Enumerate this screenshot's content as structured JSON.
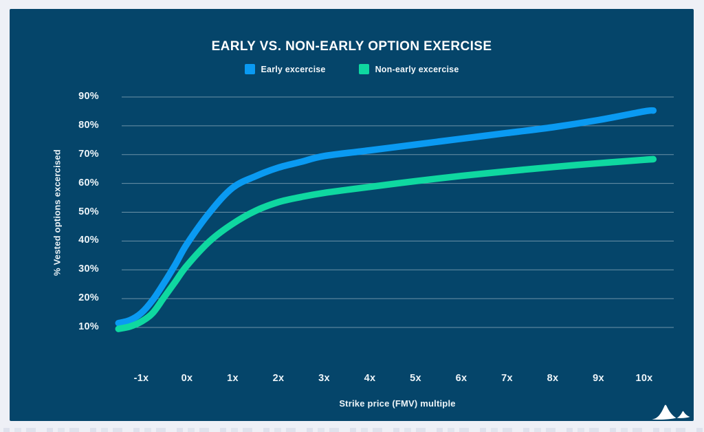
{
  "page": {
    "background_color": "#EEF0F6",
    "card_color": "#05456A"
  },
  "chart_data": {
    "type": "line",
    "title": "EARLY VS. NON-EARLY OPTION EXERCISE",
    "xlabel": "Strike price (FMV) multiple",
    "ylabel": "% Vested options excercised",
    "x_tick_labels": [
      "-1x",
      "0x",
      "1x",
      "2x",
      "3x",
      "4x",
      "5x",
      "6x",
      "7x",
      "8x",
      "9x",
      "10x"
    ],
    "x_tick_values": [
      -1,
      0,
      1,
      2,
      3,
      4,
      5,
      6,
      7,
      8,
      9,
      10
    ],
    "y_tick_labels": [
      "10%",
      "20%",
      "30%",
      "40%",
      "50%",
      "60%",
      "70%",
      "80%",
      "90%"
    ],
    "y_tick_values": [
      10,
      20,
      30,
      40,
      50,
      60,
      70,
      80,
      90
    ],
    "xlim": [
      -1.6,
      10.45
    ],
    "ylim": [
      4,
      94
    ],
    "grid": "horizontal-only",
    "gridline_color": "rgba(255,255,255,0.42)",
    "legend_position": "top-center",
    "line_width": 9.5,
    "point_units": [
      "strike_price_fmv_multiple",
      "percent_vested_options_exercised"
    ],
    "series": [
      {
        "name": "Early excercise",
        "color": "#0A9AF2",
        "points": [
          [
            -1.5,
            11.5
          ],
          [
            -1.25,
            12.5
          ],
          [
            -1,
            15
          ],
          [
            -0.75,
            19.5
          ],
          [
            -0.5,
            25.5
          ],
          [
            -0.25,
            32
          ],
          [
            0,
            39
          ],
          [
            0.5,
            50
          ],
          [
            1,
            58.5
          ],
          [
            1.5,
            62.5
          ],
          [
            2,
            65.5
          ],
          [
            2.5,
            67.5
          ],
          [
            3,
            69.5
          ],
          [
            4,
            71.5
          ],
          [
            5,
            73.5
          ],
          [
            6,
            75.5
          ],
          [
            7,
            77.5
          ],
          [
            8,
            79.5
          ],
          [
            9,
            82
          ],
          [
            10,
            85
          ],
          [
            10.2,
            85.3
          ]
        ]
      },
      {
        "name": "Non-early excercise",
        "color": "#0FD8A0",
        "points": [
          [
            -1.5,
            9.5
          ],
          [
            -1.25,
            10.3
          ],
          [
            -1,
            12
          ],
          [
            -0.75,
            15
          ],
          [
            -0.5,
            20.5
          ],
          [
            -0.25,
            26
          ],
          [
            0,
            31.5
          ],
          [
            0.5,
            40
          ],
          [
            1,
            46
          ],
          [
            1.5,
            50.5
          ],
          [
            2,
            53.5
          ],
          [
            2.5,
            55.3
          ],
          [
            3,
            56.7
          ],
          [
            4,
            58.8
          ],
          [
            5,
            60.8
          ],
          [
            6,
            62.6
          ],
          [
            7,
            64.2
          ],
          [
            8,
            65.7
          ],
          [
            9,
            67
          ],
          [
            10,
            68.2
          ],
          [
            10.2,
            68.4
          ]
        ]
      }
    ]
  },
  "footer": {
    "logo_icon": "twin-mountain-peaks-logo"
  }
}
